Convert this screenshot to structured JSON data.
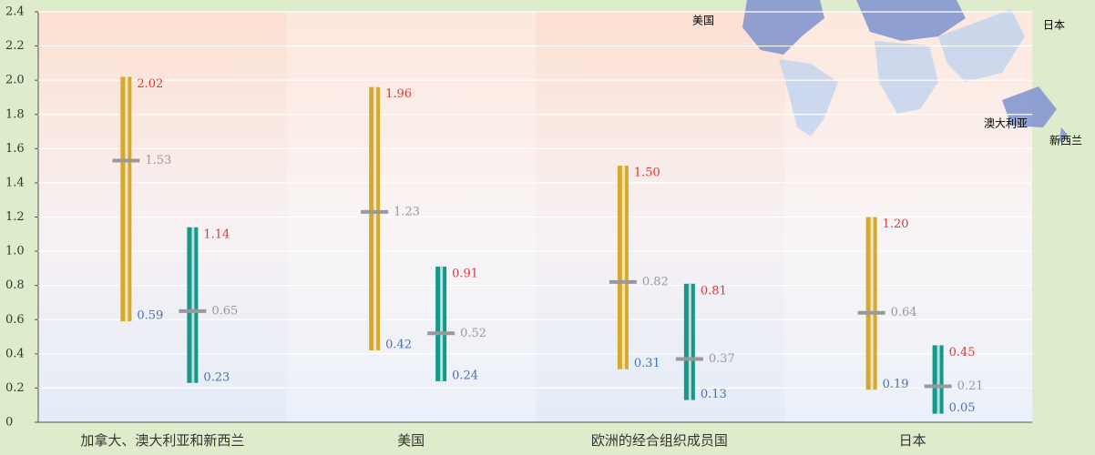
{
  "chart_data": {
    "type": "range_bar",
    "categories": [
      "加拿大、澳大利亚和新西兰",
      "美国",
      "欧洲的经合组织成员国",
      "日本"
    ],
    "ylim": [
      0,
      2.4
    ],
    "yticks": [
      0,
      0.2,
      0.4,
      0.6,
      0.8,
      {
        "value": 1.0,
        "label": "1.0"
      },
      1.2,
      1.4,
      1.6,
      1.8,
      {
        "value": 2.0,
        "label": "2.0"
      },
      2.2,
      2.4
    ],
    "grid": true,
    "series": [
      {
        "color": "#d6a92e",
        "high": [
          2.02,
          1.96,
          1.5,
          1.2
        ],
        "high_labels": [
          "2.02",
          "1.96",
          "1.50",
          "1.20"
        ],
        "mean": [
          1.53,
          1.23,
          0.82,
          0.64
        ],
        "mean_labels": [
          "1.53",
          "1.23",
          "0.82",
          "0.64"
        ],
        "low": [
          0.59,
          0.42,
          0.31,
          0.19
        ],
        "low_labels": [
          "0.59",
          "0.42",
          "0.31",
          "0.19"
        ]
      },
      {
        "color": "#16988b",
        "high": [
          1.14,
          0.91,
          0.81,
          0.45
        ],
        "high_labels": [
          "1.14",
          "0.91",
          "0.81",
          "0.45"
        ],
        "mean": [
          0.65,
          0.52,
          0.37,
          0.21
        ],
        "mean_labels": [
          "0.65",
          "0.52",
          "0.37",
          "0.21"
        ],
        "low": [
          0.23,
          0.24,
          0.13,
          0.05
        ],
        "low_labels": [
          "0.23",
          "0.24",
          "0.13",
          "0.05"
        ]
      }
    ]
  },
  "map_labels": [
    "美国",
    "日本",
    "澳大利亚",
    "新西兰"
  ]
}
